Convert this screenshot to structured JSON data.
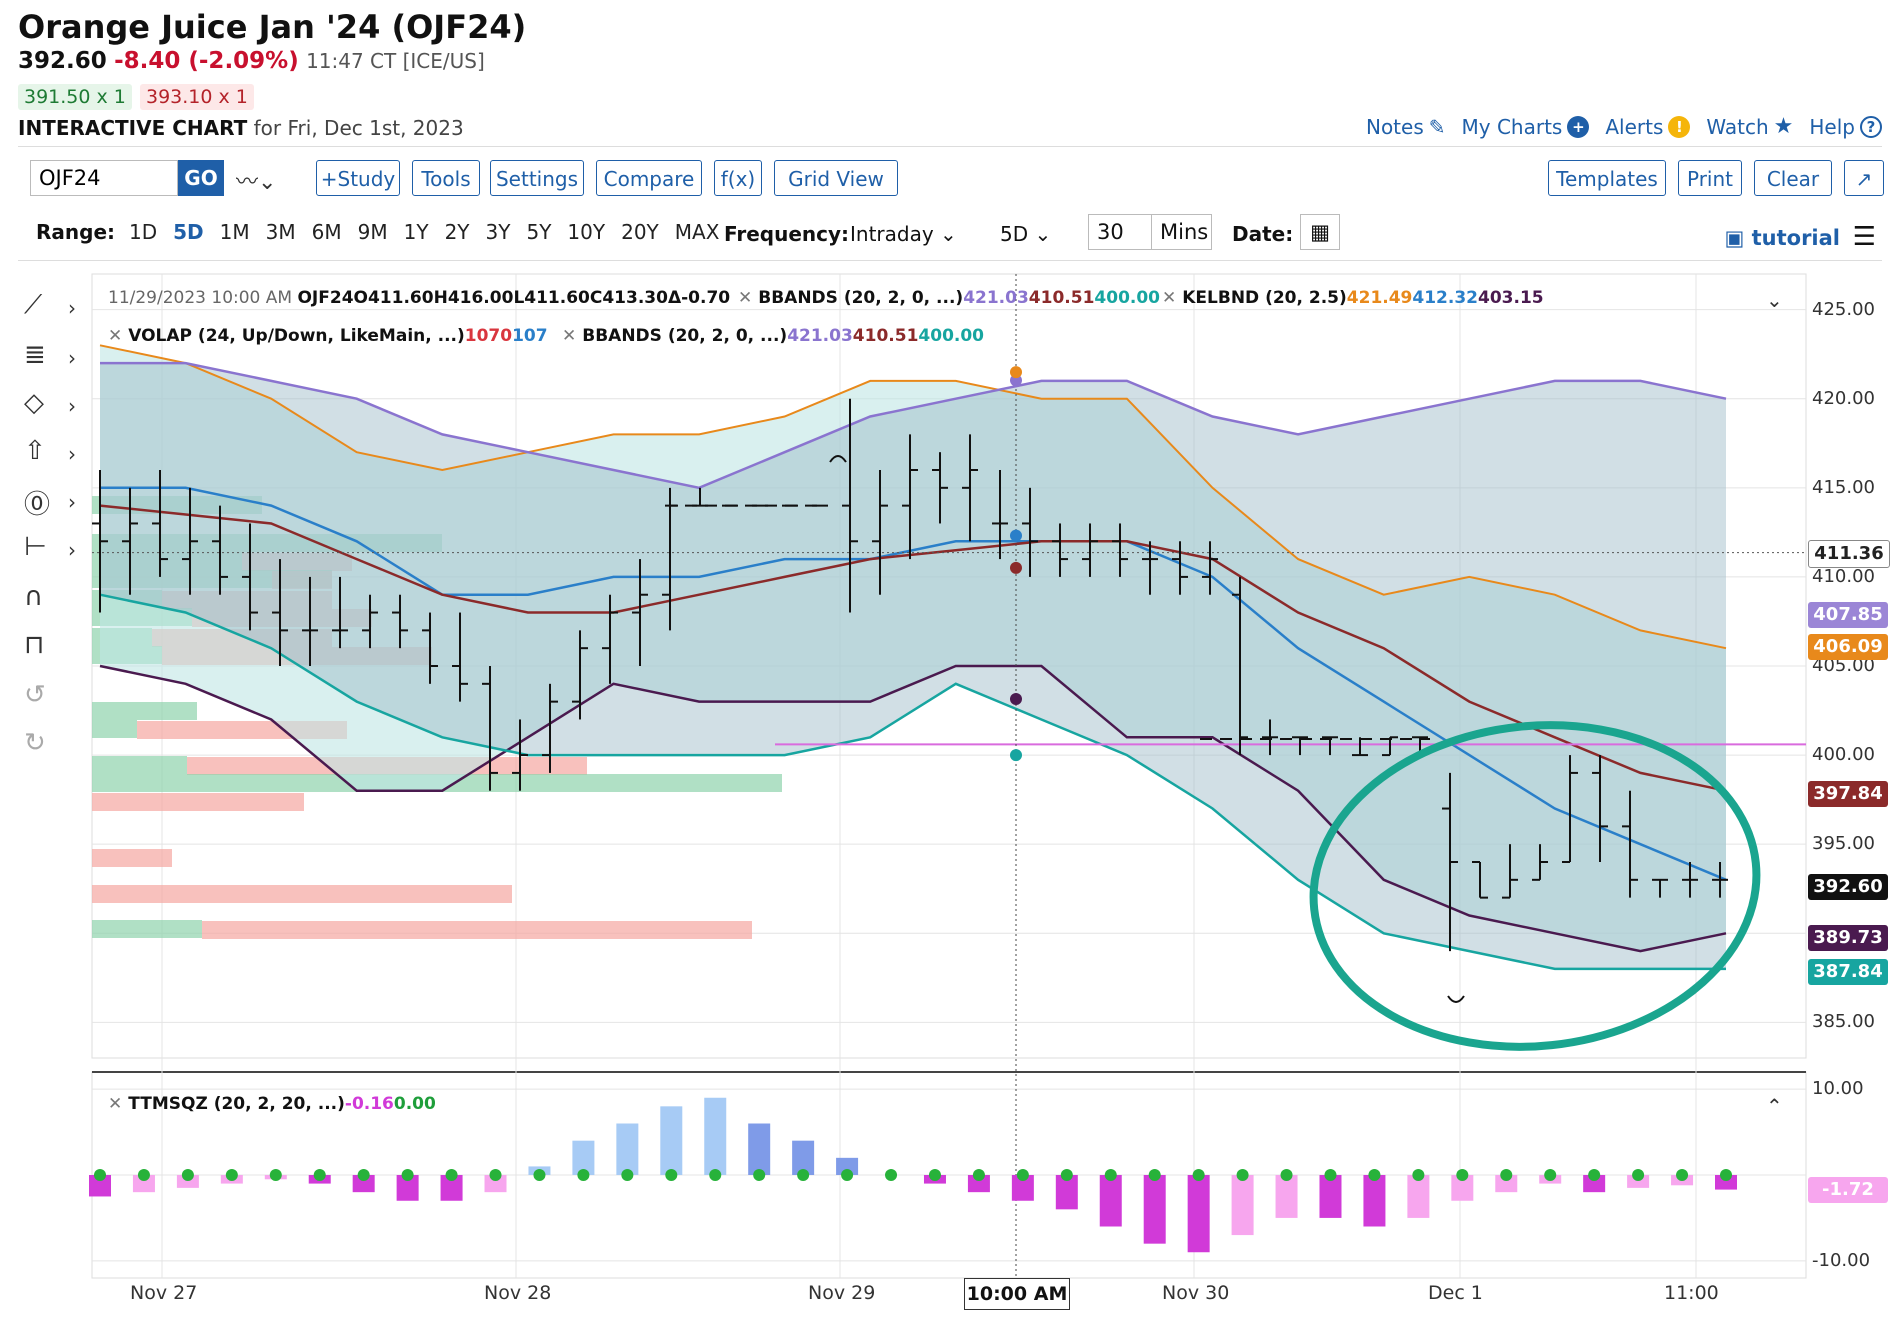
{
  "header": {
    "title": "Orange Juice Jan '24 (OJF24)",
    "last": "392.60",
    "change": "-8.40 (-2.09%)",
    "time": "11:47 CT [ICE/US]",
    "bid": "391.50 x 1",
    "ask": "393.10 x 1",
    "chart_label": "INTERACTIVE CHART",
    "chart_for": "for Fri, Dec 1st, 2023"
  },
  "links": {
    "notes": "Notes",
    "my_charts": "My Charts",
    "alerts": "Alerts",
    "watch": "Watch",
    "help": "Help"
  },
  "toolbar": {
    "symbol": "OJF24",
    "go": "GO",
    "study": "+Study",
    "tools": "Tools",
    "settings": "Settings",
    "compare": "Compare",
    "fx": "f(x)",
    "grid_view": "Grid View",
    "templates": "Templates",
    "print": "Print",
    "clear": "Clear"
  },
  "range": {
    "label": "Range:",
    "options": [
      "1D",
      "5D",
      "1M",
      "3M",
      "6M",
      "9M",
      "1Y",
      "2Y",
      "3Y",
      "5Y",
      "10Y",
      "20Y",
      "MAX"
    ],
    "selected": "5D",
    "frequency_label": "Frequency:",
    "frequency": "Intraday",
    "period": "5D",
    "interval": "30",
    "interval_unit": "Mins",
    "date_label": "Date:",
    "tutorial": "tutorial"
  },
  "legend": {
    "ohlc": {
      "date": "11/29/2023 10:00 AM",
      "sym": "OJF24",
      "o": "O411.60",
      "h": "H416.00",
      "l": "L411.60",
      "c": "C413.30",
      "d": "Δ-0.70"
    },
    "bbands1": {
      "name": "BBANDS (20, 2, 0, ...)",
      "v1": "421.03",
      "v2": "410.51",
      "v3": "400.00"
    },
    "kelbnd": {
      "name": "KELBND (20, 2.5)",
      "v1": "421.49",
      "v2": "412.32",
      "v3": "403.15"
    },
    "volap": {
      "name": "VOLAP (24, Up/Down, LikeMain, ...)",
      "v1": "1070",
      "v2": "107"
    },
    "bbands2": {
      "name": "BBANDS (20, 2, 0, ...)",
      "v1": "421.03",
      "v2": "410.51",
      "v3": "400.00"
    },
    "ttm": {
      "name": "TTMSQZ (20, 2, 20, ...)",
      "v1": "-0.16",
      "v2": "0.00"
    }
  },
  "price_axis": {
    "ticks": [
      "425.00",
      "420.00",
      "415.00",
      "410.00",
      "405.00",
      "400.00",
      "395.00",
      "390.00",
      "385.00"
    ],
    "labels": [
      {
        "text": "411.36",
        "value": 411.36,
        "bg": "#ffffff",
        "fg": "#222222"
      },
      {
        "text": "407.85",
        "value": 407.85,
        "bg": "#9b86d6",
        "fg": "#ffffff"
      },
      {
        "text": "406.09",
        "value": 406.09,
        "bg": "#e8891b",
        "fg": "#ffffff"
      },
      {
        "text": "397.84",
        "value": 397.84,
        "bg": "#8b2a2a",
        "fg": "#ffffff"
      },
      {
        "text": "392.60",
        "value": 392.6,
        "bg": "#111111",
        "fg": "#ffffff"
      },
      {
        "text": "389.73",
        "value": 389.73,
        "bg": "#4a1a4f",
        "fg": "#ffffff"
      },
      {
        "text": "387.84",
        "value": 387.84,
        "bg": "#17a5a0",
        "fg": "#ffffff"
      }
    ]
  },
  "osc_axis": {
    "ticks": [
      "10.00",
      "-10.00"
    ],
    "labels": [
      {
        "text": "-1.72",
        "value": -1.72,
        "bg": "#f7a6ee",
        "fg": "#ffffff"
      }
    ]
  },
  "time_axis": {
    "labels": [
      "Nov 27",
      "Nov 28",
      "Nov 29",
      "Nov 30",
      "Dec 1",
      "11:00"
    ],
    "crosshair": "10:00 AM"
  },
  "chart_data": {
    "type": "line",
    "symbol": "OJF24",
    "bars": [
      [
        413,
        416,
        408,
        412
      ],
      [
        412,
        415,
        409,
        413
      ],
      [
        413,
        416,
        410,
        411
      ],
      [
        411,
        415,
        409,
        412
      ],
      [
        412,
        414,
        409,
        410
      ],
      [
        410,
        413,
        407,
        408
      ],
      [
        408,
        411,
        405,
        407
      ],
      [
        407,
        410,
        405,
        407
      ],
      [
        407,
        410,
        406,
        407
      ],
      [
        407,
        409,
        406,
        408
      ],
      [
        408,
        409,
        406,
        407
      ],
      [
        407,
        408,
        404,
        405
      ],
      [
        405,
        408,
        403,
        404
      ],
      [
        404,
        405,
        398,
        399
      ],
      [
        399,
        402,
        398,
        400
      ],
      [
        400,
        404,
        399,
        403
      ],
      [
        403,
        407,
        402,
        406
      ],
      [
        406,
        409,
        404,
        408
      ],
      [
        408,
        411,
        405,
        409
      ],
      [
        409,
        415,
        407,
        414
      ],
      [
        414,
        415,
        414,
        414
      ],
      [
        414,
        414,
        414,
        414
      ],
      [
        414,
        414,
        414,
        414
      ],
      [
        414,
        414,
        414,
        414
      ],
      [
        414,
        414,
        414,
        414
      ],
      [
        414,
        420,
        408,
        412
      ],
      [
        412,
        416,
        409,
        414
      ],
      [
        414,
        418,
        411,
        416
      ],
      [
        416,
        417,
        413,
        415
      ],
      [
        415,
        418,
        412,
        416
      ],
      [
        413,
        416,
        411,
        413
      ],
      [
        413,
        415,
        410,
        412
      ],
      [
        412,
        413,
        410,
        411
      ],
      [
        411,
        413,
        410,
        412
      ],
      [
        412,
        413,
        410,
        411
      ],
      [
        411,
        412,
        409,
        411
      ],
      [
        411,
        412,
        409,
        410
      ],
      [
        410,
        412,
        409,
        411
      ],
      [
        409,
        410,
        400,
        401
      ],
      [
        401,
        402,
        400,
        401
      ],
      [
        401,
        401,
        400,
        401
      ],
      [
        401,
        401,
        400,
        401
      ],
      [
        400,
        401,
        400,
        400
      ],
      [
        400,
        401,
        400,
        401
      ],
      [
        401,
        401,
        400,
        401
      ],
      [
        397,
        399,
        389,
        394
      ],
      [
        394,
        394,
        392,
        392
      ],
      [
        392,
        395,
        392,
        393
      ],
      [
        393,
        395,
        393,
        394
      ],
      [
        394,
        400,
        394,
        399
      ],
      [
        399,
        400,
        394,
        396
      ],
      [
        396,
        398,
        392,
        393
      ],
      [
        393,
        393,
        392,
        393
      ],
      [
        393,
        394,
        392,
        393
      ],
      [
        393,
        394,
        392,
        393
      ]
    ],
    "bbands_upper": [
      422,
      422,
      421,
      420,
      418,
      417,
      416,
      415,
      417,
      419,
      420,
      421,
      421,
      419,
      418,
      419,
      420,
      421,
      421,
      420
    ],
    "bbands_mid": [
      414,
      413.5,
      413,
      411,
      409,
      408,
      408,
      409,
      410,
      411,
      411.5,
      412,
      412,
      411,
      408,
      406,
      403,
      401,
      399,
      398
    ],
    "bbands_lower": [
      409,
      408,
      406,
      403,
      401,
      400,
      400,
      400,
      400,
      401,
      404,
      402,
      400,
      397,
      393,
      390,
      389,
      388,
      388,
      388
    ],
    "keltner_upper": [
      423,
      422,
      420,
      417,
      416,
      417,
      418,
      418,
      419,
      421,
      421,
      420,
      420,
      415,
      411,
      409,
      410,
      409,
      407,
      406
    ],
    "keltner_mid": [
      415,
      415,
      414,
      412,
      409,
      409,
      410,
      410,
      411,
      411,
      412,
      412,
      412,
      410,
      406,
      403,
      400,
      397,
      395,
      393
    ],
    "keltner_lower": [
      405,
      404,
      402,
      398,
      398,
      401,
      404,
      403,
      403,
      403,
      405,
      405,
      401,
      401,
      398,
      393,
      391,
      390,
      389,
      390
    ],
    "ttm_momentum": [
      -2.5,
      -2,
      -1.5,
      -1,
      -0.5,
      -1,
      -2,
      -3,
      -3,
      -2,
      1,
      4,
      6,
      8,
      9,
      6,
      4,
      2,
      0,
      -1,
      -2,
      -3,
      -4,
      -6,
      -8,
      -9,
      -7,
      -5,
      -5,
      -6,
      -5,
      -3,
      -2,
      -1,
      -2,
      -1.5,
      -1.2,
      -1.7
    ],
    "ylim": [
      383,
      427
    ],
    "osc_ylim": [
      -12,
      12
    ]
  }
}
